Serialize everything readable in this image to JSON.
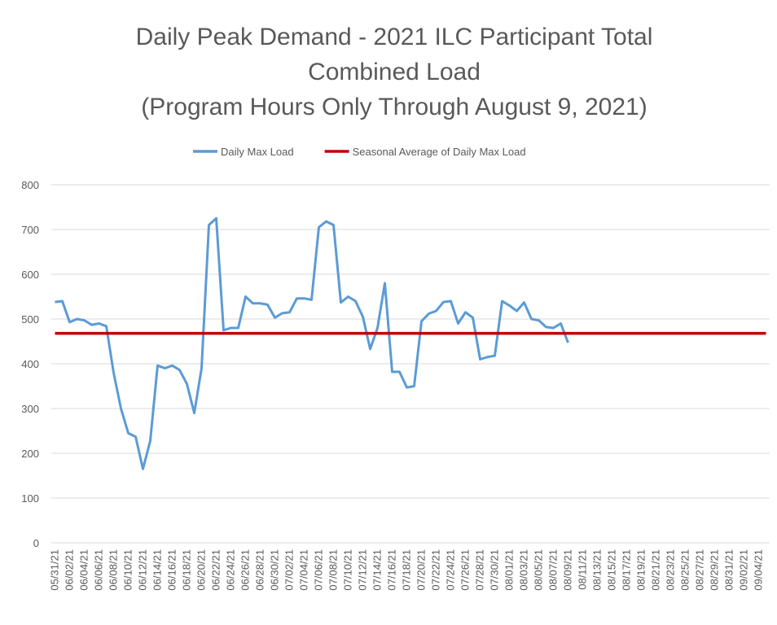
{
  "chart_data": {
    "type": "line",
    "title": [
      "Daily Peak Demand - 2021 ILC Participant Total",
      "Combined Load",
      "(Program Hours Only Through August 9, 2021)"
    ],
    "categories": [
      "05/31/21",
      null,
      "06/02/21",
      null,
      "06/04/21",
      null,
      "06/06/21",
      null,
      "06/08/21",
      null,
      "06/10/21",
      null,
      "06/12/21",
      null,
      "06/14/21",
      null,
      "06/16/21",
      null,
      "06/18/21",
      null,
      "06/20/21",
      null,
      "06/22/21",
      null,
      "06/24/21",
      null,
      "06/26/21",
      null,
      "06/28/21",
      null,
      "06/30/21",
      null,
      "07/02/21",
      null,
      "07/04/21",
      null,
      "07/06/21",
      null,
      "07/08/21",
      null,
      "07/10/21",
      null,
      "07/12/21",
      null,
      "07/14/21",
      null,
      "07/16/21",
      null,
      "07/18/21",
      null,
      "07/20/21",
      null,
      "07/22/21",
      null,
      "07/24/21",
      null,
      "07/26/21",
      null,
      "07/28/21",
      null,
      "07/30/21",
      null,
      "08/01/21",
      null,
      "08/03/21",
      null,
      "08/05/21",
      null,
      "08/07/21",
      null,
      "08/09/21",
      null,
      "08/11/21",
      null,
      "08/13/21",
      null,
      "08/15/21",
      null,
      "08/17/21",
      null,
      "08/19/21",
      null,
      "08/21/21",
      null,
      "08/23/21",
      null,
      "08/25/21",
      null,
      "08/27/21",
      null,
      "08/29/21",
      null,
      "08/31/21",
      null,
      "09/02/21",
      null,
      "09/04/21",
      null
    ],
    "series": [
      {
        "name": "Daily Max Load",
        "color": "#5b9bd5",
        "values": [
          538,
          540,
          493,
          500,
          497,
          487,
          490,
          484,
          380,
          300,
          245,
          237,
          165,
          228,
          396,
          390,
          396,
          386,
          355,
          290,
          390,
          710,
          725,
          475,
          480,
          480,
          550,
          535,
          535,
          532,
          503,
          513,
          515,
          546,
          546,
          543,
          705,
          718,
          710,
          537,
          550,
          540,
          505,
          433,
          480,
          580,
          382,
          382,
          347,
          350,
          495,
          512,
          518,
          538,
          540,
          490,
          515,
          503,
          410,
          415,
          418,
          540,
          530,
          518,
          537,
          500,
          497,
          482,
          480,
          490,
          447,
          null,
          null,
          null,
          null,
          null,
          null,
          null,
          null,
          null,
          null,
          null,
          null,
          null,
          null,
          null,
          null,
          null,
          null,
          null,
          null,
          null,
          null,
          null,
          null,
          null,
          null,
          null
        ]
      },
      {
        "name": "Seasonal Average of Daily Max Load",
        "color": "#c00000",
        "values": [
          468,
          468,
          468,
          468,
          468,
          468,
          468,
          468,
          468,
          468,
          468,
          468,
          468,
          468,
          468,
          468,
          468,
          468,
          468,
          468,
          468,
          468,
          468,
          468,
          468,
          468,
          468,
          468,
          468,
          468,
          468,
          468,
          468,
          468,
          468,
          468,
          468,
          468,
          468,
          468,
          468,
          468,
          468,
          468,
          468,
          468,
          468,
          468,
          468,
          468,
          468,
          468,
          468,
          468,
          468,
          468,
          468,
          468,
          468,
          468,
          468,
          468,
          468,
          468,
          468,
          468,
          468,
          468,
          468,
          468,
          468,
          468,
          468,
          468,
          468,
          468,
          468,
          468,
          468,
          468,
          468,
          468,
          468,
          468,
          468,
          468,
          468,
          468,
          468,
          468,
          468,
          468,
          468,
          468,
          468,
          468,
          468,
          468
        ]
      }
    ],
    "ylim": [
      0,
      800
    ],
    "yticks": [
      0,
      100,
      200,
      300,
      400,
      500,
      600,
      700,
      800
    ],
    "grid": true,
    "legend": "top"
  }
}
